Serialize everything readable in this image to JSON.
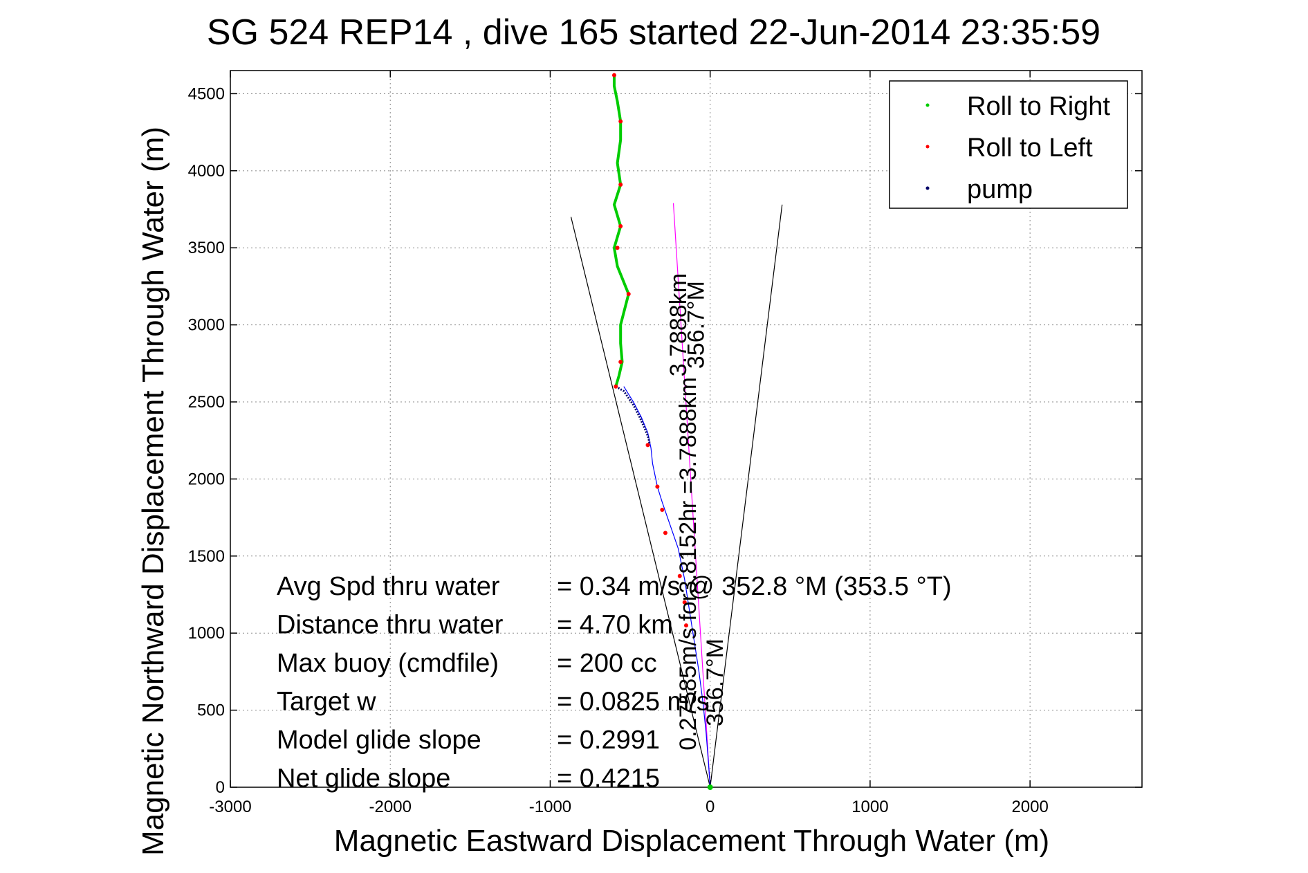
{
  "chart_data": {
    "type": "scatter",
    "title": "SG 524   REP14  , dive 165 started 22-Jun-2014 23:35:59",
    "xlabel": "Magnetic Eastward Displacement Through Water (m)",
    "ylabel": "Magnetic Northward Displacement Through Water (m)",
    "xlim": [
      -3000,
      2700
    ],
    "ylim": [
      0,
      4650
    ],
    "xticks": [
      -3000,
      -2000,
      -1000,
      0,
      1000,
      2000
    ],
    "yticks": [
      0,
      500,
      1000,
      1500,
      2000,
      2500,
      3000,
      3500,
      4000,
      4500
    ],
    "grid": true,
    "legend_position": "top-right",
    "legend": [
      {
        "label": "Roll to Right",
        "color": "#00cc00"
      },
      {
        "label": "Roll to Left",
        "color": "#ff0000"
      },
      {
        "label": "pump",
        "color": "#000066"
      }
    ],
    "track_blue": [
      [
        0,
        0
      ],
      [
        -10,
        150
      ],
      [
        -25,
        350
      ],
      [
        -45,
        550
      ],
      [
        -70,
        750
      ],
      [
        -100,
        950
      ],
      [
        -130,
        1150
      ],
      [
        -160,
        1350
      ],
      [
        -200,
        1550
      ],
      [
        -250,
        1700
      ],
      [
        -300,
        1850
      ],
      [
        -330,
        1950
      ],
      [
        -360,
        2100
      ],
      [
        -370,
        2200
      ],
      [
        -390,
        2300
      ],
      [
        -430,
        2400
      ],
      [
        -480,
        2500
      ],
      [
        -540,
        2600
      ]
    ],
    "track_green": [
      [
        -590,
        2600
      ],
      [
        -570,
        2670
      ],
      [
        -550,
        2760
      ],
      [
        -560,
        2880
      ],
      [
        -560,
        3000
      ],
      [
        -510,
        3200
      ],
      [
        -580,
        3380
      ],
      [
        -600,
        3500
      ],
      [
        -560,
        3640
      ],
      [
        -600,
        3780
      ],
      [
        -560,
        3910
      ],
      [
        -580,
        4050
      ],
      [
        -560,
        4200
      ],
      [
        -560,
        4320
      ],
      [
        -580,
        4450
      ],
      [
        -600,
        4550
      ],
      [
        -600,
        4620
      ]
    ],
    "track_pump": [
      [
        -590,
        2600
      ],
      [
        -540,
        2570
      ],
      [
        -480,
        2480
      ],
      [
        -440,
        2400
      ],
      [
        -410,
        2330
      ],
      [
        -390,
        2280
      ],
      [
        -380,
        2240
      ],
      [
        -385,
        2210
      ]
    ],
    "roll_left_points": [
      [
        -590,
        2600
      ],
      [
        -560,
        2760
      ],
      [
        -510,
        3200
      ],
      [
        -580,
        3500
      ],
      [
        -560,
        3640
      ],
      [
        -560,
        3910
      ],
      [
        -560,
        4320
      ],
      [
        -600,
        4620
      ],
      [
        -390,
        2220
      ],
      [
        -330,
        1950
      ],
      [
        -300,
        1800
      ],
      [
        -280,
        1650
      ],
      [
        -190,
        1370
      ],
      [
        -160,
        1200
      ],
      [
        -150,
        1050
      ]
    ],
    "cone_lines": [
      {
        "from": [
          0,
          0
        ],
        "to": [
          -870,
          3700
        ],
        "color": "#000000"
      },
      {
        "from": [
          0,
          0
        ],
        "to": [
          450,
          3780
        ],
        "color": "#000000"
      }
    ],
    "heading_line": {
      "from": [
        0,
        0
      ],
      "to": [
        -230,
        3790
      ],
      "color": "#ff00ff"
    },
    "annotations": [
      {
        "text": "3.7888km",
        "x": -150,
        "y": 3000,
        "rotation": -90
      },
      {
        "text": "356.7°M",
        "x": -40,
        "y": 3000,
        "rotation": -90
      },
      {
        "text": "0.27585m/s for3.8152hr =3.7888km",
        "x": -90,
        "y": 1450,
        "rotation": -90
      },
      {
        "text": "356.7°M",
        "x": 80,
        "y": 680,
        "rotation": -90
      }
    ],
    "stats": [
      {
        "label": "Avg Spd thru water",
        "value": "=  0.34 m/s @ 352.8 °M (353.5 °T)"
      },
      {
        "label": "Distance thru water",
        "value": "=  4.70 km"
      },
      {
        "label": "Max buoy (cmdfile)",
        "value": "= 200 cc"
      },
      {
        "label": "Target w",
        "value": "= 0.0825 m/s"
      },
      {
        "label": "Model glide slope",
        "value": "= 0.2991"
      },
      {
        "label": "Net glide slope",
        "value": "= 0.4215"
      }
    ]
  }
}
